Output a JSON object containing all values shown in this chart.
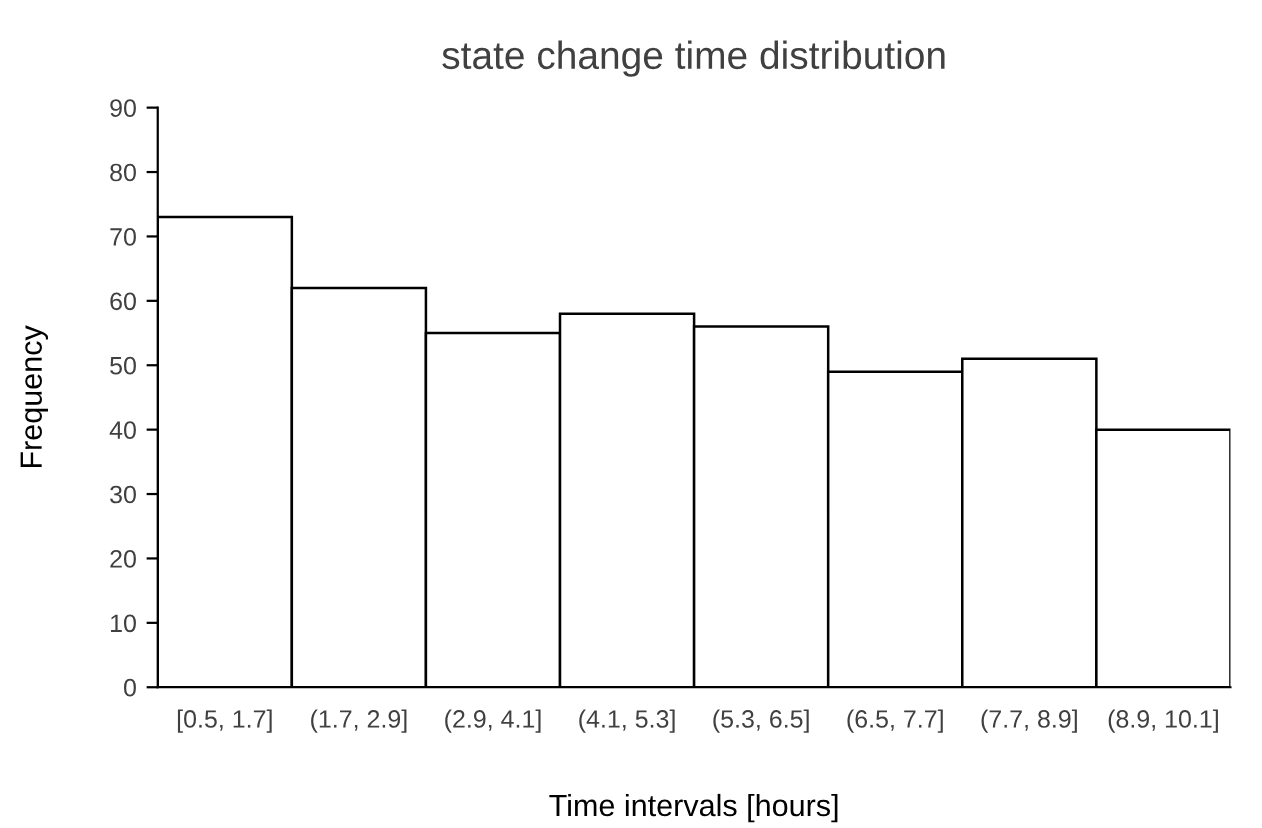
{
  "chart_data": {
    "type": "bar",
    "title": "state change time distribution",
    "xlabel": "Time intervals [hours]",
    "ylabel": "Frequency",
    "categories": [
      "[0.5, 1.7]",
      "(1.7, 2.9]",
      "(2.9, 4.1]",
      "(4.1, 5.3]",
      "(5.3, 6.5]",
      "(6.5, 7.7]",
      "(7.7, 8.9]",
      "(8.9, 10.1]"
    ],
    "values": [
      73,
      62,
      55,
      58,
      56,
      49,
      51,
      40
    ],
    "color": "#ffffff",
    "ylim": [
      0,
      90
    ],
    "yticks": [
      0,
      10,
      20,
      30,
      40,
      50,
      60,
      70,
      80,
      90
    ],
    "grid": false,
    "legend": false
  }
}
